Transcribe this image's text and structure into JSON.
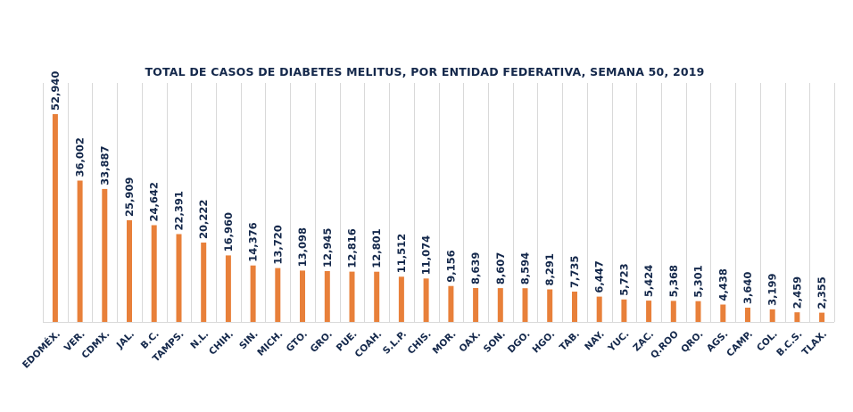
{
  "chart_data": {
    "type": "bar",
    "title": "TOTAL DE CASOS DE DIABETES MELITUS, POR ENTIDAD FEDERATIVA, SEMANA 50, 2019",
    "xlabel": "",
    "ylabel": "",
    "ylim": [
      0,
      55000
    ],
    "grid": "vertical category separators",
    "legend": "none",
    "bar_color": "#e8803a",
    "text_color": "#14284b",
    "grid_color": "#d9d9d9",
    "categories": [
      "EDOMÉX.",
      "VER.",
      "CDMX.",
      "JAL.",
      "B.C.",
      "TAMPS.",
      "N.L.",
      "CHIH.",
      "SIN.",
      "MICH.",
      "GTO.",
      "GRO.",
      "PUE.",
      "COAH.",
      "S.L.P.",
      "CHIS.",
      "MOR.",
      "OAX.",
      "SON.",
      "DGO.",
      "HGO.",
      "TAB.",
      "NAY.",
      "YUC.",
      "ZAC.",
      "Q.ROO",
      "QRO.",
      "AGS.",
      "CAMP.",
      "COL.",
      "B.C.S.",
      "TLAX."
    ],
    "values": [
      52940,
      36002,
      33887,
      25909,
      24642,
      22391,
      20222,
      16960,
      14376,
      13720,
      13098,
      12945,
      12816,
      12801,
      11512,
      11074,
      9156,
      8639,
      8607,
      8594,
      8291,
      7735,
      6447,
      5723,
      5424,
      5368,
      5301,
      4438,
      3640,
      3199,
      2459,
      2355
    ],
    "value_labels": [
      "52,940",
      "36,002",
      "33,887",
      "25,909",
      "24,642",
      "22,391",
      "20,222",
      "16,960",
      "14,376",
      "13,720",
      "13,098",
      "12,945",
      "12,816",
      "12,801",
      "11,512",
      "11,074",
      "9,156",
      "8,639",
      "8,607",
      "8,594",
      "8,291",
      "7,735",
      "6,447",
      "5,723",
      "5,424",
      "5,368",
      "5,301",
      "4,438",
      "3,640",
      "3,199",
      "2,459",
      "2,355"
    ]
  }
}
